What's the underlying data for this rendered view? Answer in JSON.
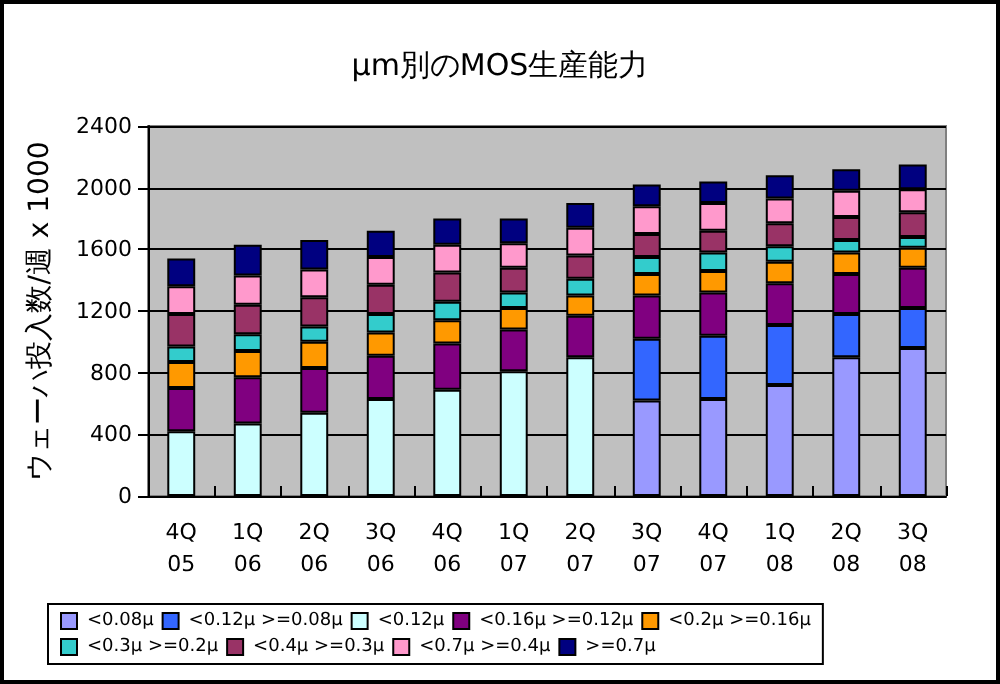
{
  "chart_data": {
    "type": "bar",
    "title": "μm別のMOS生産能力",
    "ylabel": "ウェーハ投入数/週 x 1000",
    "categories": [
      "4Q\n05",
      "1Q\n06",
      "2Q\n06",
      "3Q\n06",
      "4Q\n06",
      "1Q\n07",
      "2Q\n07",
      "3Q\n07",
      "4Q\n07",
      "1Q\n08",
      "2Q\n08",
      "3Q\n08"
    ],
    "stacked": true,
    "grid": "y",
    "legend": "bottom",
    "ylim": [
      0,
      2400
    ],
    "yticks": [
      0,
      400,
      800,
      1200,
      1600,
      2000,
      2400
    ],
    "series": [
      {
        "name": "<0.08μ",
        "color": "#9999ff",
        "values": [
          null,
          null,
          null,
          null,
          null,
          null,
          null,
          620,
          630,
          720,
          900,
          960
        ]
      },
      {
        "name": "<0.12μ >=0.08μ",
        "color": "#3366ff",
        "values": [
          null,
          null,
          null,
          null,
          null,
          null,
          null,
          400,
          410,
          390,
          280,
          260
        ]
      },
      {
        "name": "<0.12μ",
        "color": "#ccffff",
        "values": [
          420,
          470,
          540,
          630,
          690,
          810,
          900,
          null,
          null,
          null,
          null,
          null
        ]
      },
      {
        "name": "<0.16μ >=0.12μ",
        "color": "#800080",
        "values": [
          280,
          300,
          290,
          280,
          300,
          270,
          270,
          280,
          280,
          270,
          260,
          260
        ]
      },
      {
        "name": "<0.2μ >=0.16μ",
        "color": "#ff9900",
        "values": [
          170,
          170,
          170,
          150,
          150,
          140,
          130,
          140,
          140,
          140,
          140,
          130
        ]
      },
      {
        "name": "<0.3μ >=0.2μ",
        "color": "#33cccc",
        "values": [
          100,
          110,
          100,
          120,
          120,
          100,
          110,
          110,
          120,
          100,
          80,
          70
        ]
      },
      {
        "name": "<0.4μ >=0.3μ",
        "color": "#993366",
        "values": [
          210,
          190,
          190,
          190,
          190,
          160,
          150,
          150,
          140,
          150,
          150,
          160
        ]
      },
      {
        "name": "<0.7μ >=0.4μ",
        "color": "#ff99cc",
        "values": [
          180,
          190,
          180,
          180,
          180,
          160,
          180,
          180,
          180,
          160,
          170,
          150
        ]
      },
      {
        "name": ">=0.7μ",
        "color": "#000080",
        "values": [
          180,
          200,
          190,
          170,
          170,
          160,
          160,
          140,
          140,
          150,
          140,
          160
        ]
      }
    ]
  }
}
